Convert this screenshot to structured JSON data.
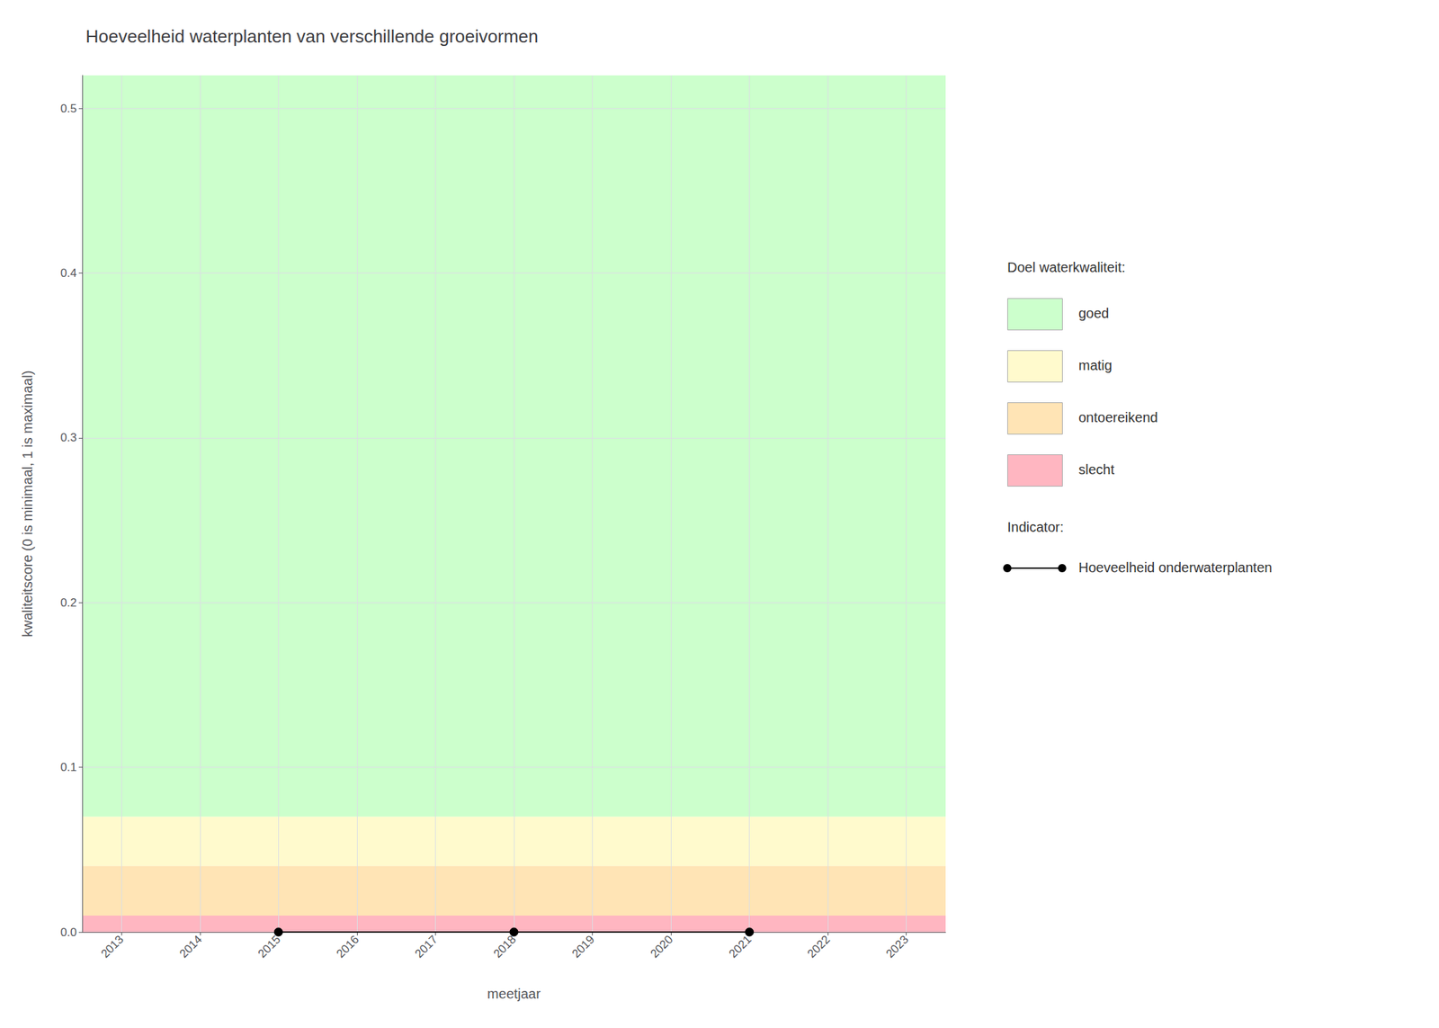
{
  "chart_data": {
    "type": "line",
    "title": "Hoeveelheid waterplanten van verschillende groeivormen",
    "xlabel": "meetjaar",
    "ylabel": "kwaliteitscore (0 is minimaal, 1 is maximaal)",
    "x": [
      2015,
      2018,
      2021
    ],
    "series": [
      {
        "name": "Hoeveelheid onderwaterplanten",
        "color": "#000000",
        "marker": "circle",
        "values": [
          0.0,
          0.0,
          0.0
        ]
      }
    ],
    "xlim": [
      2012.5,
      2023.5
    ],
    "xticks": [
      2013,
      2014,
      2015,
      2016,
      2017,
      2018,
      2019,
      2020,
      2021,
      2022,
      2023
    ],
    "ylim": [
      0,
      0.52
    ],
    "yticks": [
      {
        "value": 0.0,
        "label": "0.0"
      },
      0.1,
      0.2,
      0.3,
      0.4,
      0.5
    ],
    "grid": true,
    "legend_title": "Doel waterkwaliteit:",
    "indicator_title": "Indicator:",
    "bands": [
      {
        "name": "goed",
        "color": "#CCFFCC",
        "ymin": 0.07,
        "ymax": 0.52
      },
      {
        "name": "matig",
        "color": "#FFFACD",
        "ymin": 0.04,
        "ymax": 0.07
      },
      {
        "name": "ontoereikend",
        "color": "#FFE4B5",
        "ymin": 0.01,
        "ymax": 0.04
      },
      {
        "name": "slecht",
        "color": "#FFB6C1",
        "ymin": 0.0,
        "ymax": 0.01
      }
    ]
  }
}
